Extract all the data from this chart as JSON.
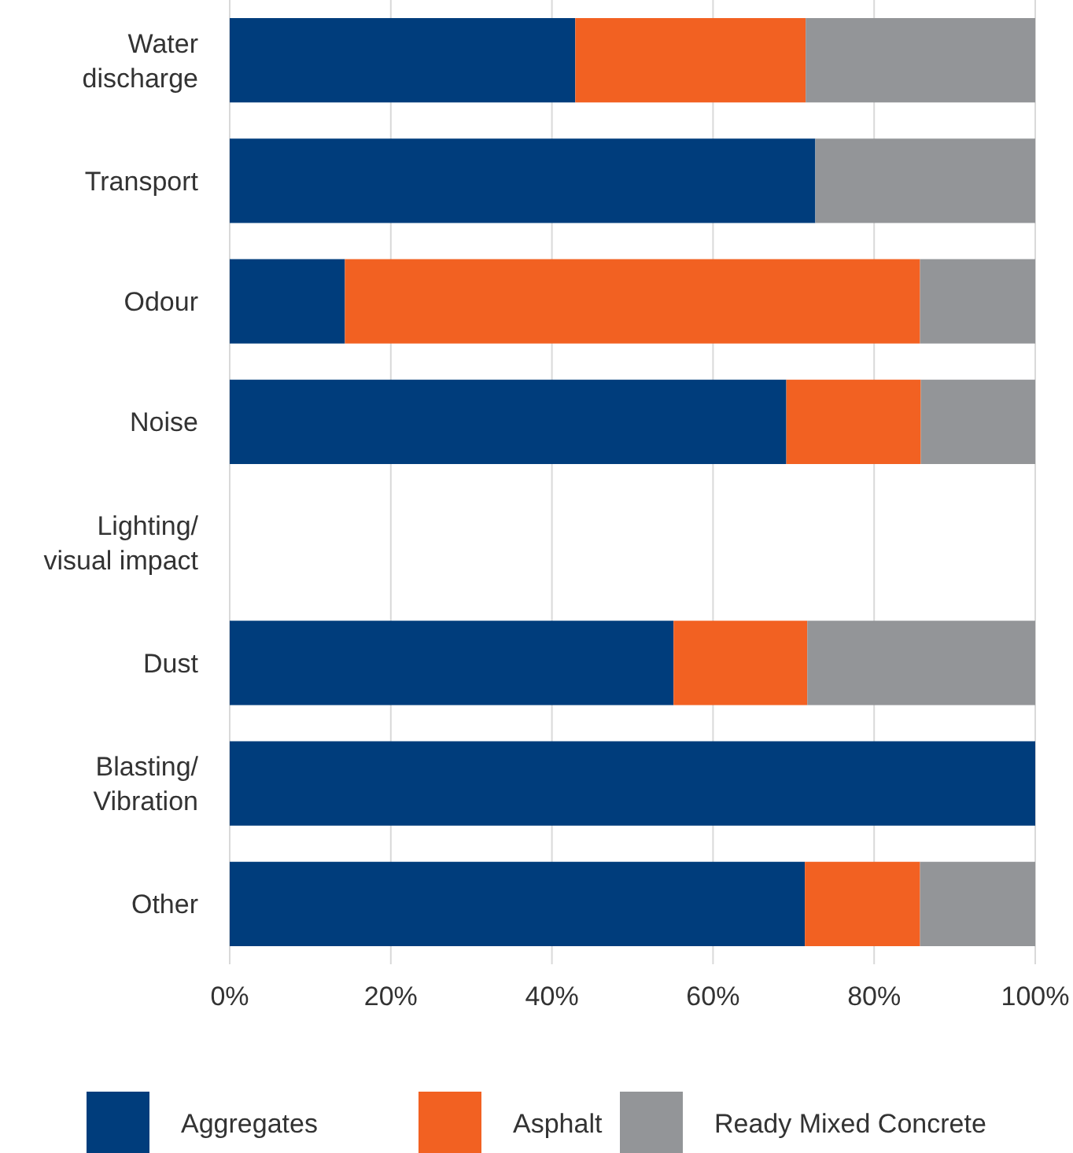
{
  "chart_data": {
    "type": "bar",
    "orientation": "horizontal",
    "stacked": true,
    "categories": [
      "Water\ndischarge",
      "Transport",
      "Odour",
      "Noise",
      "Lighting/\nvisual impact",
      "Dust",
      "Blasting/\nVibration",
      "Other"
    ],
    "series": [
      {
        "name": "Aggregates",
        "color": "#003d7c",
        "values": [
          42.9,
          72.7,
          14.3,
          69.1,
          0,
          55.1,
          100,
          71.4
        ]
      },
      {
        "name": "Asphalt",
        "color": "#f26122",
        "values": [
          28.6,
          0,
          71.4,
          16.7,
          0,
          16.6,
          0,
          14.3
        ]
      },
      {
        "name": "Ready Mixed Concrete",
        "color": "#939598",
        "values": [
          28.5,
          27.3,
          14.3,
          14.2,
          0,
          28.3,
          0,
          14.3
        ]
      }
    ],
    "xlim": [
      0,
      100
    ],
    "xticks": [
      {
        "value": 0,
        "label": "0%"
      },
      {
        "value": 20,
        "label": "20%"
      },
      {
        "value": 40,
        "label": "40%"
      },
      {
        "value": 60,
        "label": "60%"
      },
      {
        "value": 80,
        "label": "80%"
      },
      {
        "value": 100,
        "label": "100%"
      }
    ],
    "grid": "x",
    "legend": "bottom"
  }
}
